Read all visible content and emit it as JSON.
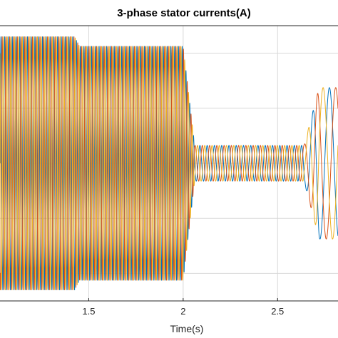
{
  "chart_data": {
    "type": "line",
    "title": "3-phase stator currents(A)",
    "xlabel": "Time(s)",
    "ylabel": "",
    "xlim": [
      1.03,
      2.82
    ],
    "ylim": [
      -1.0,
      1.0
    ],
    "x_ticks": [
      1.5,
      2,
      2.5
    ],
    "x_tick_labels": [
      "1.5",
      "2",
      "2.5"
    ],
    "grid": true,
    "series": [
      {
        "color": "#0072BD",
        "phase_deg": 0
      },
      {
        "color": "#D95319",
        "phase_deg": -120
      },
      {
        "color": "#EDB120",
        "phase_deg": 120
      }
    ],
    "segments": [
      {
        "t_start": 1.03,
        "t_end": 1.425,
        "amplitude": 0.92,
        "frequency_hz": 50
      },
      {
        "t_start": 1.425,
        "t_end": 1.455,
        "amplitude_start": 0.92,
        "amplitude_end": 0.84,
        "frequency_hz": 50
      },
      {
        "t_start": 1.455,
        "t_end": 2.0,
        "amplitude": 0.85,
        "frequency_hz": 50
      },
      {
        "t_start": 2.0,
        "t_end": 2.06,
        "amplitude_start": 0.85,
        "amplitude_end": 0.14,
        "frequency_hz": 50
      },
      {
        "t_start": 2.06,
        "t_end": 2.64,
        "amplitude": 0.13,
        "frequency_hz": 26
      },
      {
        "t_start": 2.64,
        "t_end": 2.72,
        "amplitude_start": 0.13,
        "amplitude_end": 0.55,
        "frequency_hz": 14
      },
      {
        "t_start": 2.72,
        "t_end": 2.82,
        "amplitude": 0.55,
        "frequency_hz": 10
      }
    ]
  }
}
